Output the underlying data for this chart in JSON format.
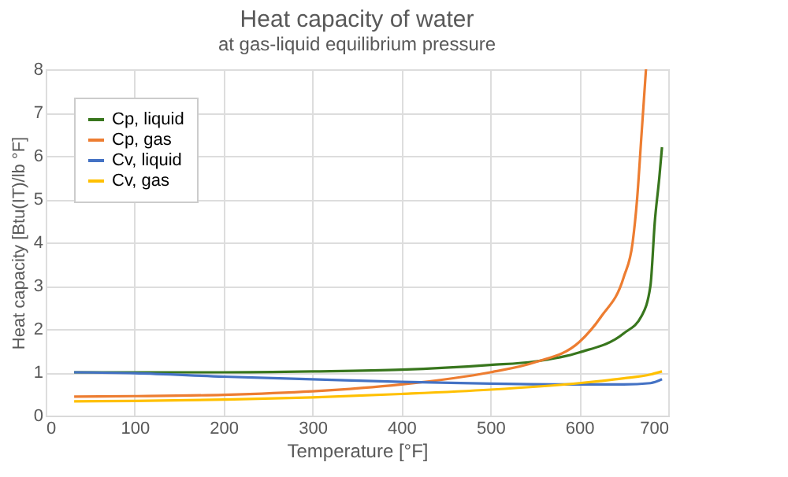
{
  "chart_data": {
    "type": "line",
    "title": "Heat capacity of water",
    "subtitle": "at gas-liquid equilibrium pressure",
    "xlabel": "Temperature  [°F]",
    "ylabel": "Heat capacity [Btu(IT)/lb °F]",
    "xlim": [
      0,
      700
    ],
    "xticks": [
      0,
      100,
      200,
      300,
      400,
      500,
      600,
      700
    ],
    "ylim": [
      0,
      8
    ],
    "yticks": [
      0,
      1,
      2,
      3,
      4,
      5,
      6,
      7,
      8
    ],
    "grid": true,
    "legend": "top left",
    "marker": "none",
    "line_style": "solid",
    "series": [
      {
        "name": "Cp, liquid",
        "color": "#38761d",
        "x": [
          32,
          100,
          200,
          300,
          400,
          500,
          550,
          600,
          650,
          670,
          680,
          685,
          690,
          693
        ],
        "values": [
          1.0,
          1.0,
          1.0,
          1.02,
          1.06,
          1.17,
          1.25,
          1.46,
          1.9,
          2.3,
          3.0,
          4.5,
          5.5,
          6.2
        ]
      },
      {
        "name": "Cp, gas",
        "color": "#ed7d31",
        "x": [
          32,
          100,
          200,
          300,
          400,
          500,
          550,
          600,
          625,
          650,
          660,
          665,
          670,
          675
        ],
        "values": [
          0.44,
          0.45,
          0.48,
          0.56,
          0.72,
          1.0,
          1.23,
          1.7,
          2.3,
          3.2,
          4.0,
          5.0,
          6.5,
          8.0
        ]
      },
      {
        "name": "Cv, liquid",
        "color": "#4472c4",
        "x": [
          32,
          100,
          200,
          300,
          400,
          500,
          600,
          650,
          680,
          693
        ],
        "values": [
          1.0,
          0.98,
          0.9,
          0.84,
          0.78,
          0.74,
          0.72,
          0.72,
          0.75,
          0.84
        ]
      },
      {
        "name": "Cv, gas",
        "color": "#ffc000",
        "x": [
          32,
          100,
          200,
          300,
          400,
          500,
          600,
          650,
          680,
          693
        ],
        "values": [
          0.33,
          0.34,
          0.37,
          0.42,
          0.5,
          0.6,
          0.75,
          0.86,
          0.95,
          1.02
        ]
      }
    ]
  }
}
